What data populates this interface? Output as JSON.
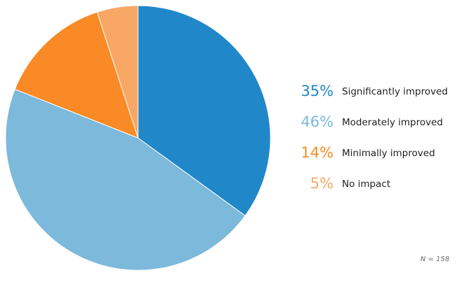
{
  "chart_data": {
    "type": "pie",
    "slices": [
      {
        "label": "Significantly improved",
        "value": 35,
        "value_label": "35%",
        "color": "#2088c9"
      },
      {
        "label": "Moderately improved",
        "value": 46,
        "value_label": "46%",
        "color": "#7cb9db"
      },
      {
        "label": "Minimally improved",
        "value": 14,
        "value_label": "14%",
        "color": "#f98a25"
      },
      {
        "label": "No impact",
        "value": 5,
        "value_label": "5%",
        "color": "#f8a765"
      }
    ],
    "start_angle": "12 o'clock",
    "direction": "clockwise",
    "legend_placement": "right",
    "annotation": "N = 158"
  }
}
